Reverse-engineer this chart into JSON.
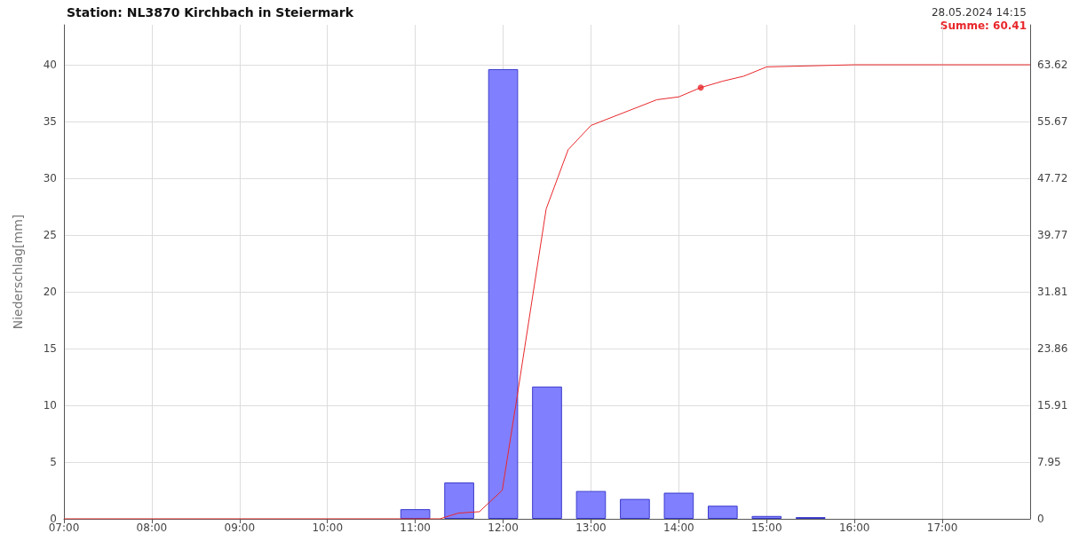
{
  "chart_data": {
    "type": "bar",
    "title": "Station: NL3870 Kirchbach in Steiermark",
    "ylabel": "Niederschlag[mm]",
    "annotations": [
      "28.05.2024 14:15",
      "Summe: 60.41"
    ],
    "xlim": [
      7,
      18
    ],
    "xticks": [
      {
        "value": 7,
        "label": "07:00"
      },
      {
        "value": 8,
        "label": "08:00"
      },
      {
        "value": 9,
        "label": "09:00"
      },
      {
        "value": 10,
        "label": "10:00"
      },
      {
        "value": 11,
        "label": "11:00"
      },
      {
        "value": 12,
        "label": "12:00"
      },
      {
        "value": 13,
        "label": "13:00"
      },
      {
        "value": 14,
        "label": "14:00"
      },
      {
        "value": 15,
        "label": "15:00"
      },
      {
        "value": 16,
        "label": "16:00"
      },
      {
        "value": 17,
        "label": "17:00"
      }
    ],
    "ylim": [
      0,
      43.5
    ],
    "yticks": [
      0,
      5,
      10,
      15,
      20,
      25,
      30,
      35,
      40
    ],
    "y2lim": [
      0,
      69.19
    ],
    "y2ticks": [
      0,
      7.95,
      15.91,
      23.86,
      31.81,
      39.77,
      47.72,
      55.67,
      63.62
    ],
    "grid": true,
    "marker": "none",
    "series": [
      {
        "color": "#8080ff",
        "x": [
          11,
          11.5,
          12,
          12.5,
          13,
          13.5,
          14,
          14.5,
          15,
          15.5
        ],
        "values": [
          0.85,
          3.2,
          39.6,
          11.65,
          2.45,
          1.75,
          2.3,
          1.15,
          0.25,
          0.15
        ]
      },
      {
        "type": "line",
        "axis": "y2",
        "color": "#e8272b",
        "x": [
          7,
          11.28,
          11.49,
          11.73,
          11.99,
          12.15,
          12.49,
          12.74,
          13,
          13.75,
          14,
          14.25,
          14.5,
          14.74,
          15,
          16,
          18
        ],
        "values": [
          0,
          0,
          0.8,
          1.0,
          4.0,
          16.4,
          43.4,
          51.7,
          55.1,
          58.7,
          59.1,
          60.4,
          61.3,
          62.0,
          63.3,
          63.6,
          63.6
        ]
      },
      {
        "type": "scatter",
        "axis": "y2",
        "color": "#e8272b",
        "marker": "circle",
        "x": [
          14.25
        ],
        "values": [
          60.4
        ]
      }
    ]
  }
}
